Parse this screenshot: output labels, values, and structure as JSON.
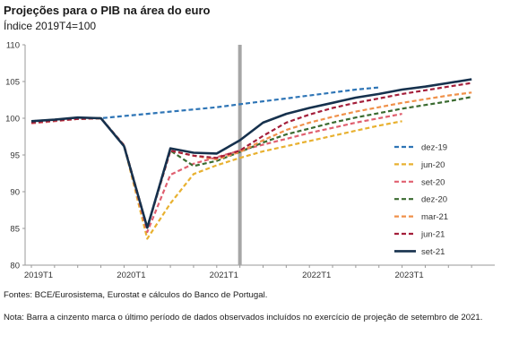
{
  "header": {
    "title": "Projeções para o PIB na área do euro",
    "subtitle": "Índice 2019T4=100"
  },
  "footer": {
    "source": "Fontes: BCE/Eurosistema, Eurostat e cálculos do Banco de Portugal.",
    "note": "Nota: Barra a cinzento marca o último período de dados observados incluídos no exercício de projeção de setembro de 2021."
  },
  "chart_data": {
    "type": "line",
    "title": "Projeções para o PIB na área do euro",
    "subtitle": "Índice 2019T4=100",
    "x": [
      "2019T1",
      "2019T2",
      "2019T3",
      "2019T4",
      "2020T1",
      "2020T2",
      "2020T3",
      "2020T4",
      "2021T1",
      "2021T2",
      "2021T3",
      "2021T4",
      "2022T1",
      "2022T2",
      "2022T3",
      "2022T4",
      "2023T1",
      "2023T2",
      "2023T3",
      "2023T4"
    ],
    "x_tick_labels": [
      "2019T1",
      "2020T1",
      "2021T1",
      "2022T1",
      "2023T1"
    ],
    "ylim": [
      80,
      110
    ],
    "yticks": [
      80,
      85,
      90,
      95,
      100,
      105,
      110
    ],
    "observed_data_marker": "2021T2",
    "legend_position": "right",
    "series": [
      {
        "name": "dez-19",
        "color": "#2e75b6",
        "style": "dashed",
        "values": [
          99.6,
          99.8,
          100.0,
          100.0,
          100.3,
          100.6,
          100.9,
          101.2,
          101.5,
          101.9,
          102.3,
          102.7,
          103.1,
          103.5,
          103.9,
          104.2,
          null,
          null,
          null,
          null
        ]
      },
      {
        "name": "jun-20",
        "color": "#e8b130",
        "style": "dashed",
        "values": [
          99.6,
          99.8,
          100.0,
          100.0,
          96.3,
          83.6,
          88.4,
          92.4,
          93.6,
          94.6,
          95.5,
          96.2,
          96.9,
          97.6,
          98.3,
          99.0,
          99.6,
          null,
          null,
          null
        ]
      },
      {
        "name": "set-20",
        "color": "#e06070",
        "style": "dashed",
        "values": [
          99.3,
          99.6,
          99.9,
          100.0,
          96.3,
          84.5,
          92.3,
          93.8,
          94.7,
          95.6,
          96.4,
          97.2,
          98.0,
          98.7,
          99.4,
          100.0,
          100.6,
          null,
          null,
          null
        ]
      },
      {
        "name": "dez-20",
        "color": "#3a6b30",
        "style": "dashed",
        "values": [
          99.4,
          99.7,
          99.9,
          100.0,
          96.3,
          85.1,
          95.6,
          93.5,
          94.2,
          95.4,
          96.7,
          97.8,
          98.6,
          99.4,
          100.1,
          100.7,
          101.3,
          101.8,
          102.3,
          102.9
        ]
      },
      {
        "name": "mar-21",
        "color": "#f0914a",
        "style": "dashed",
        "values": [
          99.4,
          99.7,
          99.9,
          100.0,
          96.3,
          85.1,
          95.6,
          94.9,
          94.4,
          95.4,
          97.0,
          98.4,
          99.4,
          100.2,
          100.9,
          101.5,
          102.1,
          102.6,
          103.1,
          103.5
        ]
      },
      {
        "name": "jun-21",
        "color": "#a41e3a",
        "style": "dashed",
        "values": [
          99.4,
          99.7,
          99.9,
          100.0,
          96.3,
          85.1,
          95.6,
          94.9,
          94.6,
          95.6,
          97.6,
          99.4,
          100.5,
          101.4,
          102.1,
          102.7,
          103.3,
          103.8,
          104.3,
          104.8
        ]
      },
      {
        "name": "set-21",
        "color": "#16314d",
        "style": "solid",
        "values": [
          99.6,
          99.8,
          100.1,
          100.0,
          96.2,
          85.1,
          95.9,
          95.3,
          95.2,
          97.0,
          99.4,
          100.6,
          101.4,
          102.1,
          102.8,
          103.3,
          103.9,
          104.3,
          104.8,
          105.3
        ]
      }
    ]
  }
}
